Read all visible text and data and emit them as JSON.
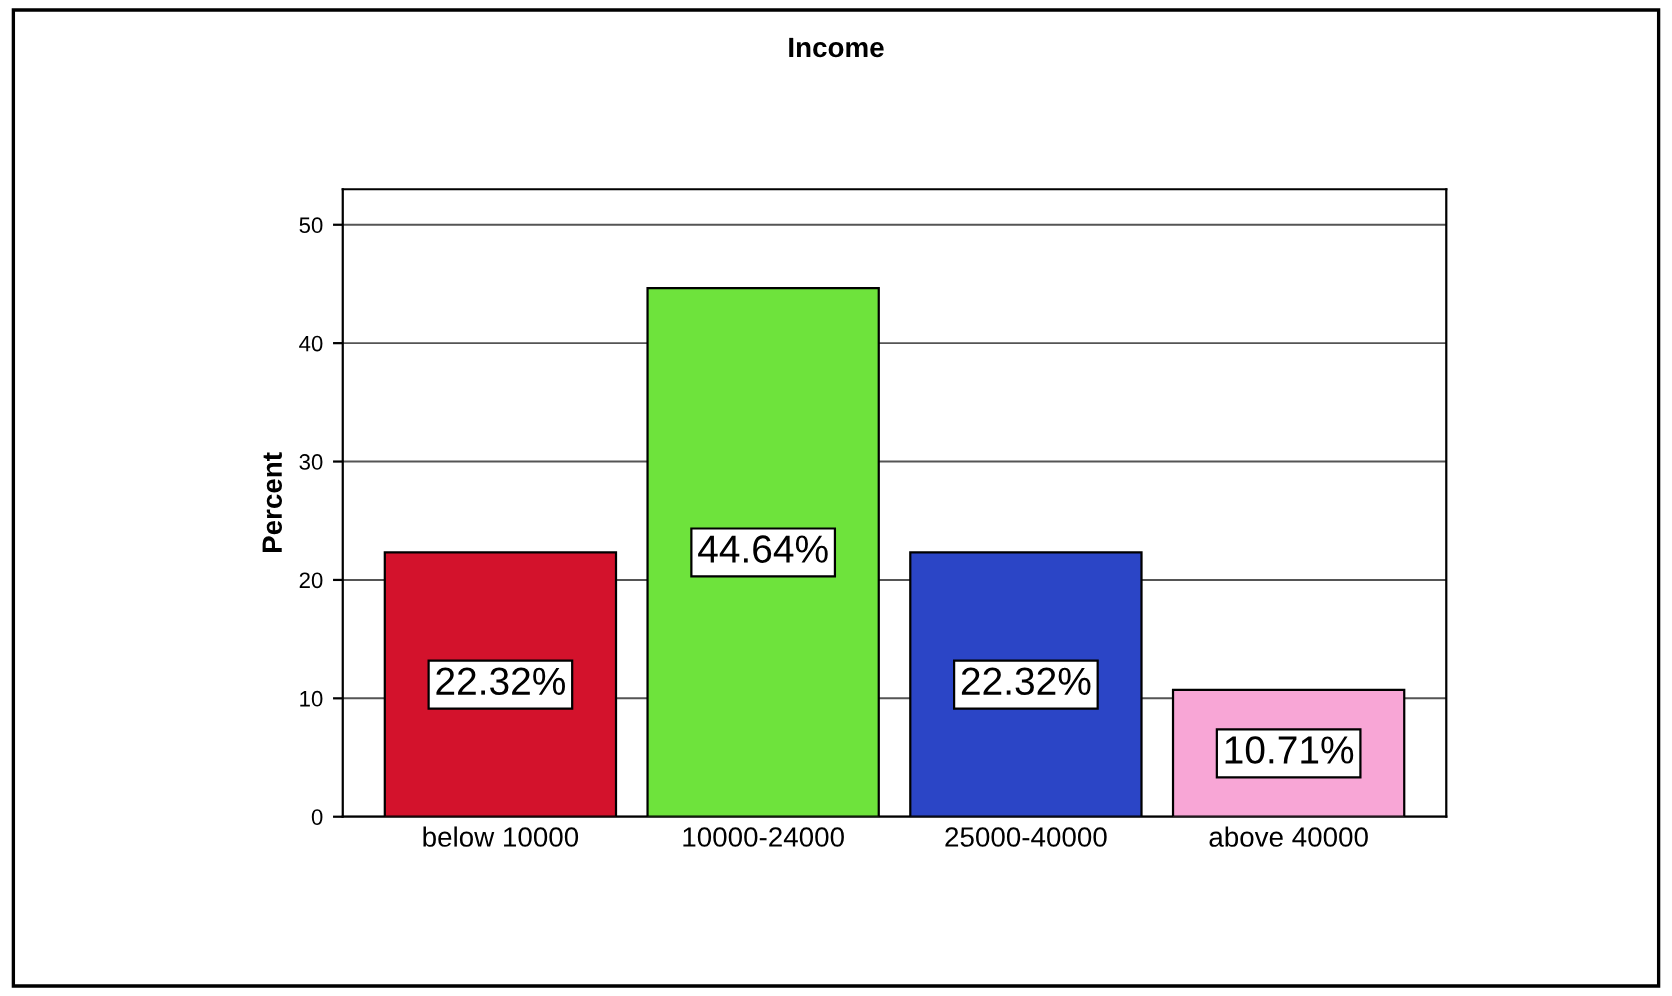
{
  "chart_data": {
    "type": "bar",
    "title": "Income",
    "ylabel": "Percent",
    "categories": [
      "below 10000",
      "10000-24000",
      "25000-40000",
      "above 40000"
    ],
    "values": [
      22.32,
      44.64,
      22.32,
      10.71
    ],
    "colors": [
      "#d3122c",
      "#6ee33c",
      "#2b45c6",
      "#f8a6d6"
    ],
    "value_labels": [
      "22.32%",
      "44.64%",
      "22.32%",
      "10.71%"
    ],
    "ylim": [
      0,
      53
    ],
    "yticks": [
      0,
      10,
      20,
      30,
      40,
      50
    ],
    "grid": "y",
    "legend": false
  }
}
